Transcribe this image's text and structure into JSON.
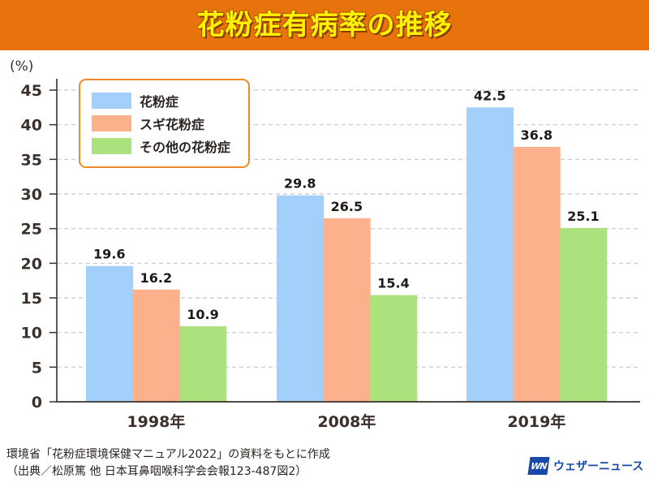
{
  "header": {
    "title": "花粉症有病率の推移"
  },
  "colors": {
    "banner": "#e8730c",
    "title": "#fff200",
    "legend_border": "#ef8a2a",
    "logo": "#1a4aa8"
  },
  "chart_data": {
    "type": "bar",
    "title": "花粉症有病率の推移",
    "ylabel": "(%)",
    "xlabel": "",
    "ylim": [
      0,
      45
    ],
    "yticks": [
      0,
      5,
      10,
      15,
      20,
      25,
      30,
      35,
      40,
      45
    ],
    "grid": true,
    "legend_position": "top-left",
    "categories": [
      "1998年",
      "2008年",
      "2019年"
    ],
    "series": [
      {
        "name": "花粉症",
        "color": "#a3d0fb",
        "values": [
          19.6,
          29.8,
          42.5
        ],
        "labels": [
          "19.6",
          "29.8",
          "42.5"
        ]
      },
      {
        "name": "スギ花粉症",
        "color": "#fdb08c",
        "values": [
          16.2,
          26.5,
          36.8
        ],
        "labels": [
          "16.2",
          "26.5",
          "36.8"
        ]
      },
      {
        "name": "その他の花粉症",
        "color": "#abe27e",
        "values": [
          10.9,
          15.4,
          25.1
        ],
        "labels": [
          "10.9",
          "15.4",
          "25.1"
        ]
      }
    ]
  },
  "footer": {
    "line1": "環境省「花粉症環境保健マニュアル2022」の資料をもとに作成",
    "line2": "（出典／松原篤 他 日本耳鼻咽喉科学会会報123-487図2）"
  },
  "logo": {
    "mark": "WN",
    "text": "ウェザーニュース"
  }
}
